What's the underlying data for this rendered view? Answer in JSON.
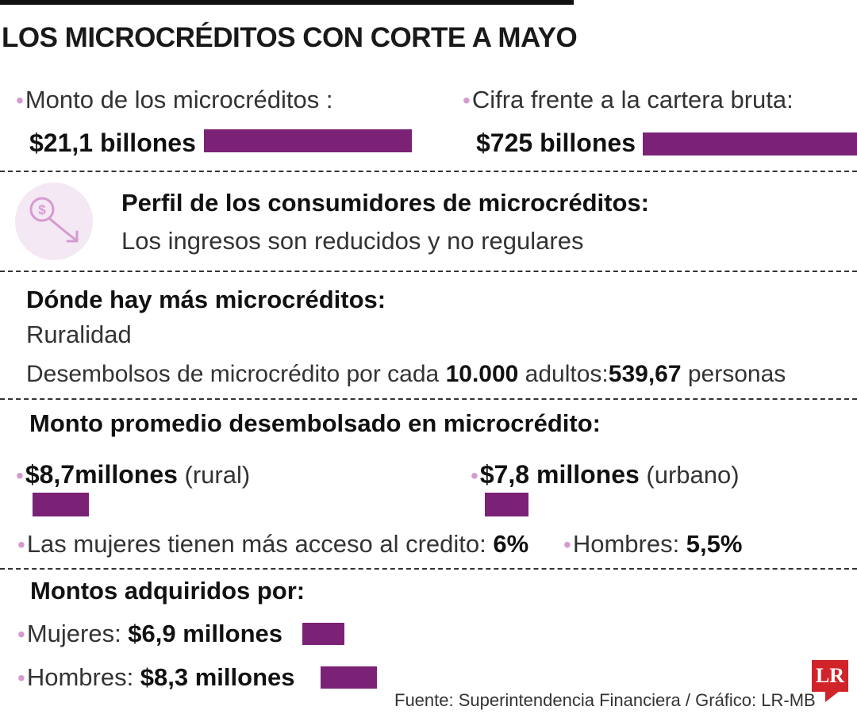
{
  "title": "LOS MICROCRÉDITOS CON CORTE A MAYO",
  "colors": {
    "accent": "#7b2277",
    "bullet": "#d69ad0",
    "logo": "#d1232a"
  },
  "section1": {
    "bullet": "•",
    "left_label": "Monto de los microcréditos :",
    "left_value": "$21,1 billones",
    "right_label": "Cifra frente a la cartera bruta:",
    "right_value": "$725 billones"
  },
  "profile": {
    "icon": "money-down-icon",
    "heading": "Perfil de los consumidores de microcréditos:",
    "text": "Los ingresos son reducidos y no regulares"
  },
  "where": {
    "heading": "Dónde hay más microcréditos:",
    "place": "Ruralidad",
    "disb_prefix": "Desembolsos de microcrédito por cada ",
    "disb_adults": "10.000",
    "disb_mid": " adultos:",
    "disb_value": "539,67",
    "disb_suffix": " personas"
  },
  "average": {
    "heading": "Monto promedio desembolsado en microcrédito:",
    "rural_value": "$8,7millones",
    "rural_label": " (rural)",
    "urban_value": "$7,8 millones",
    "urban_label": " (urbano)",
    "women_access_label": "Las mujeres tienen más acceso al credito: ",
    "women_access_value": "6%",
    "men_label": "Hombres: ",
    "men_value": "5,5%"
  },
  "amounts": {
    "heading": "Montos adquiridos por:",
    "women_label": "Mujeres: ",
    "women_value": "$6,9 millones",
    "men_label": "Hombres: ",
    "men_value": "$8,3 millones"
  },
  "source": "Fuente: Superintendencia Financiera / Gráfico: LR-MB",
  "logo": "LR"
}
